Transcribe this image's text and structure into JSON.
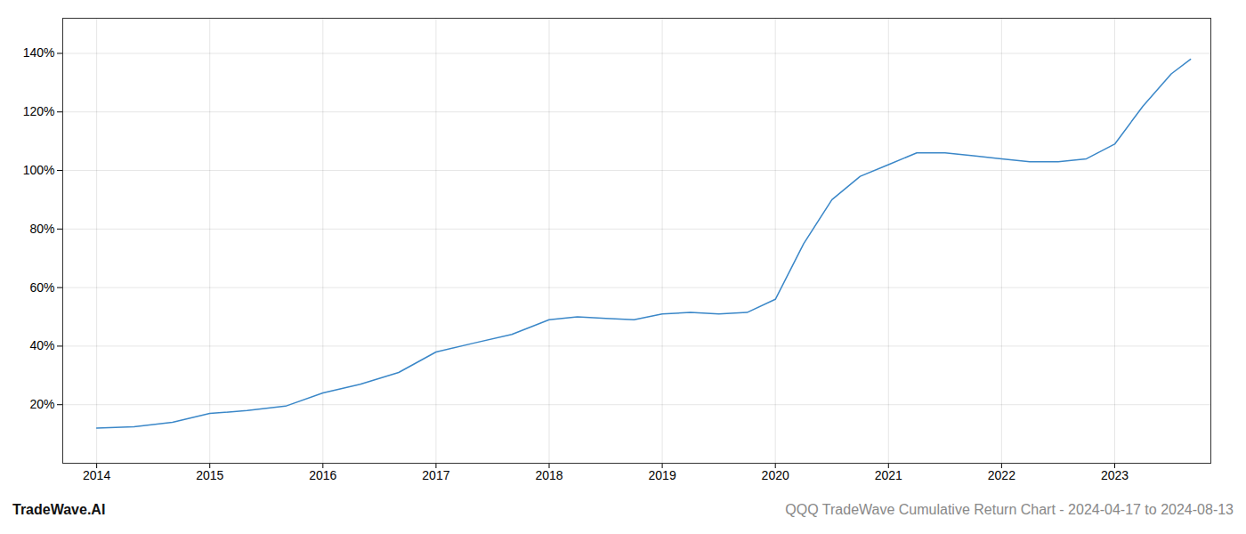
{
  "chart_data": {
    "type": "line",
    "x": [
      2014.0,
      2014.33,
      2014.67,
      2015.0,
      2015.33,
      2015.67,
      2016.0,
      2016.33,
      2016.67,
      2017.0,
      2017.33,
      2017.67,
      2018.0,
      2018.25,
      2018.5,
      2018.75,
      2019.0,
      2019.25,
      2019.5,
      2019.75,
      2020.0,
      2020.25,
      2020.5,
      2020.75,
      2021.0,
      2021.25,
      2021.5,
      2021.75,
      2022.0,
      2022.25,
      2022.5,
      2022.75,
      2023.0,
      2023.25,
      2023.5,
      2023.67
    ],
    "values": [
      12,
      12.5,
      14,
      17,
      18,
      19.5,
      24,
      27,
      31,
      38,
      41,
      44,
      49,
      50,
      49.5,
      49,
      51,
      51.5,
      51,
      51.5,
      56,
      75,
      90,
      98,
      102,
      106,
      106,
      105,
      104,
      103,
      103,
      104,
      109,
      122,
      133,
      138
    ],
    "color": "#3a87c8",
    "xlim": [
      2013.7,
      2023.85
    ],
    "xticks": [
      2014,
      2015,
      2016,
      2017,
      2018,
      2019,
      2020,
      2021,
      2022,
      2023
    ],
    "ylim": [
      0,
      152
    ],
    "yticks": [
      {
        "value": 20,
        "label": "20%"
      },
      {
        "value": 40,
        "label": "40%"
      },
      {
        "value": 60,
        "label": "60%"
      },
      {
        "value": 80,
        "label": "80%"
      },
      {
        "value": 100,
        "label": "100%"
      },
      {
        "value": 120,
        "label": "120%"
      },
      {
        "value": 140,
        "label": "140%"
      }
    ],
    "grid": true,
    "annotations": [
      {
        "text": "TradeWave.AI",
        "color": "#111111"
      },
      {
        "text": "QQQ TradeWave Cumulative Return Chart - 2024-04-17 to 2024-08-13",
        "color": "#888888"
      }
    ]
  }
}
